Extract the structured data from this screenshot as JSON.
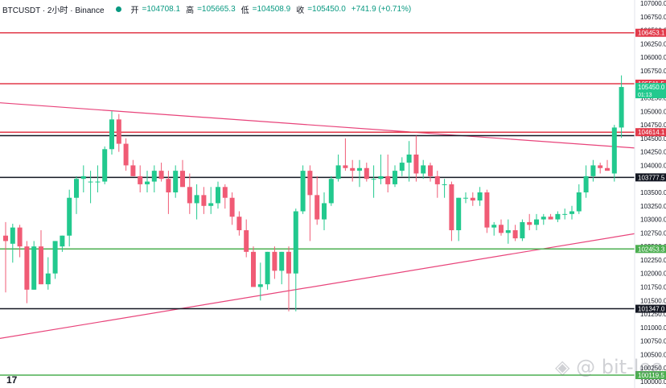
{
  "header": {
    "symbol": "BTCUSDT · 2小时 · Binance",
    "open_label": "开",
    "open_value": "=104708.1",
    "high_label": "高",
    "high_value": "=105665.3",
    "low_label": "低",
    "low_value": "=104508.9",
    "close_label": "收",
    "close_value": "=105450.0",
    "change": "+741.9 (+0.71%)"
  },
  "watermark": "◈ @ bit-lee",
  "chart_data": {
    "type": "candlestick",
    "y_axis": {
      "min": 100000,
      "max": 107000,
      "ticks": [
        107000,
        106750,
        106500,
        106250,
        106000,
        105750,
        105500,
        105250,
        105000,
        104750,
        104500,
        104250,
        104000,
        103750,
        103500,
        103250,
        103000,
        102750,
        102500,
        102250,
        102000,
        101750,
        101500,
        101250,
        101000,
        100750,
        100500,
        100250,
        100000
      ]
    },
    "colors": {
      "up": "#22c98e",
      "down": "#f05b75",
      "red_line": "#e23a4a",
      "green_line": "#4caf50",
      "black_line": "#131722",
      "trend": "#e8437a"
    },
    "candles": [
      {
        "o": 102700,
        "h": 102950,
        "l": 101650,
        "c": 102600
      },
      {
        "o": 102550,
        "h": 102920,
        "l": 102200,
        "c": 102850
      },
      {
        "o": 102850,
        "h": 102900,
        "l": 102300,
        "c": 102500
      },
      {
        "o": 102500,
        "h": 102600,
        "l": 101450,
        "c": 101700
      },
      {
        "o": 101700,
        "h": 102600,
        "l": 101700,
        "c": 102500
      },
      {
        "o": 102500,
        "h": 102800,
        "l": 101800,
        "c": 101800
      },
      {
        "o": 101800,
        "h": 102300,
        "l": 101700,
        "c": 102000
      },
      {
        "o": 102000,
        "h": 102600,
        "l": 101900,
        "c": 102600
      },
      {
        "o": 102500,
        "h": 102700,
        "l": 102400,
        "c": 102700
      },
      {
        "o": 102700,
        "h": 103550,
        "l": 102500,
        "c": 103400
      },
      {
        "o": 103400,
        "h": 103800,
        "l": 103100,
        "c": 103750
      },
      {
        "o": 103750,
        "h": 104000,
        "l": 103500,
        "c": 103800
      },
      {
        "o": 103700,
        "h": 103900,
        "l": 103300,
        "c": 103700
      },
      {
        "o": 103700,
        "h": 104000,
        "l": 103500,
        "c": 103700
      },
      {
        "o": 103700,
        "h": 104350,
        "l": 103650,
        "c": 104300
      },
      {
        "o": 104300,
        "h": 105000,
        "l": 104200,
        "c": 104850
      },
      {
        "o": 104850,
        "h": 104950,
        "l": 104250,
        "c": 104400
      },
      {
        "o": 104400,
        "h": 104500,
        "l": 103900,
        "c": 104000
      },
      {
        "o": 104000,
        "h": 104100,
        "l": 103800,
        "c": 103800
      },
      {
        "o": 103800,
        "h": 104000,
        "l": 103500,
        "c": 103650
      },
      {
        "o": 103650,
        "h": 103900,
        "l": 103500,
        "c": 103700
      },
      {
        "o": 103700,
        "h": 104000,
        "l": 103500,
        "c": 103900
      },
      {
        "o": 103900,
        "h": 104050,
        "l": 103700,
        "c": 103750
      },
      {
        "o": 103750,
        "h": 103900,
        "l": 103100,
        "c": 103500
      },
      {
        "o": 103500,
        "h": 104000,
        "l": 103400,
        "c": 103900
      },
      {
        "o": 103900,
        "h": 104100,
        "l": 103600,
        "c": 103600
      },
      {
        "o": 103600,
        "h": 103850,
        "l": 103100,
        "c": 103300
      },
      {
        "o": 103300,
        "h": 103650,
        "l": 103000,
        "c": 103450
      },
      {
        "o": 103450,
        "h": 103600,
        "l": 103100,
        "c": 103250
      },
      {
        "o": 103250,
        "h": 103600,
        "l": 103100,
        "c": 103300
      },
      {
        "o": 103300,
        "h": 103700,
        "l": 103200,
        "c": 103600
      },
      {
        "o": 103600,
        "h": 103650,
        "l": 103200,
        "c": 103400
      },
      {
        "o": 103400,
        "h": 103500,
        "l": 102900,
        "c": 103050
      },
      {
        "o": 103050,
        "h": 103150,
        "l": 102700,
        "c": 102800
      },
      {
        "o": 102800,
        "h": 103000,
        "l": 102300,
        "c": 102400
      },
      {
        "o": 102400,
        "h": 102500,
        "l": 101800,
        "c": 101750
      },
      {
        "o": 101750,
        "h": 102200,
        "l": 101500,
        "c": 101800
      },
      {
        "o": 101800,
        "h": 102400,
        "l": 101700,
        "c": 102400
      },
      {
        "o": 102400,
        "h": 102500,
        "l": 101900,
        "c": 102050
      },
      {
        "o": 102050,
        "h": 102400,
        "l": 101800,
        "c": 102400
      },
      {
        "o": 102400,
        "h": 102500,
        "l": 101300,
        "c": 102000
      },
      {
        "o": 102000,
        "h": 103200,
        "l": 101300,
        "c": 103150
      },
      {
        "o": 103150,
        "h": 104000,
        "l": 103100,
        "c": 103900
      },
      {
        "o": 103900,
        "h": 104000,
        "l": 102600,
        "c": 103450
      },
      {
        "o": 103450,
        "h": 103800,
        "l": 102900,
        "c": 103000
      },
      {
        "o": 103000,
        "h": 103500,
        "l": 102800,
        "c": 103300
      },
      {
        "o": 103300,
        "h": 103800,
        "l": 103250,
        "c": 103750
      },
      {
        "o": 103750,
        "h": 104200,
        "l": 103700,
        "c": 104000
      },
      {
        "o": 104000,
        "h": 104500,
        "l": 103900,
        "c": 103950
      },
      {
        "o": 103950,
        "h": 104100,
        "l": 103700,
        "c": 103900
      },
      {
        "o": 103900,
        "h": 104100,
        "l": 103600,
        "c": 103950
      },
      {
        "o": 103950,
        "h": 104050,
        "l": 103700,
        "c": 103750
      },
      {
        "o": 103750,
        "h": 104000,
        "l": 103400,
        "c": 103750
      },
      {
        "o": 103750,
        "h": 104200,
        "l": 103650,
        "c": 103800
      },
      {
        "o": 103800,
        "h": 104200,
        "l": 103500,
        "c": 103650
      },
      {
        "o": 103650,
        "h": 104000,
        "l": 103600,
        "c": 103900
      },
      {
        "o": 103900,
        "h": 104150,
        "l": 103800,
        "c": 104050
      },
      {
        "o": 104050,
        "h": 104450,
        "l": 103700,
        "c": 104200
      },
      {
        "o": 104200,
        "h": 104550,
        "l": 103700,
        "c": 103850
      },
      {
        "o": 103850,
        "h": 104100,
        "l": 103750,
        "c": 104000
      },
      {
        "o": 104000,
        "h": 104050,
        "l": 103700,
        "c": 103800
      },
      {
        "o": 103800,
        "h": 103900,
        "l": 103400,
        "c": 103650
      },
      {
        "o": 103650,
        "h": 103750,
        "l": 103400,
        "c": 103650
      },
      {
        "o": 103650,
        "h": 103700,
        "l": 102600,
        "c": 102800
      },
      {
        "o": 102800,
        "h": 103400,
        "l": 102600,
        "c": 103400
      },
      {
        "o": 103400,
        "h": 103500,
        "l": 103300,
        "c": 103400
      },
      {
        "o": 103400,
        "h": 103500,
        "l": 103250,
        "c": 103350
      },
      {
        "o": 103350,
        "h": 103600,
        "l": 103250,
        "c": 103500
      },
      {
        "o": 103500,
        "h": 103550,
        "l": 102750,
        "c": 102850
      },
      {
        "o": 102850,
        "h": 102950,
        "l": 102700,
        "c": 102900
      },
      {
        "o": 102900,
        "h": 103000,
        "l": 102700,
        "c": 102750
      },
      {
        "o": 102750,
        "h": 103000,
        "l": 102550,
        "c": 102800
      },
      {
        "o": 102800,
        "h": 102900,
        "l": 102600,
        "c": 102650
      },
      {
        "o": 102650,
        "h": 103000,
        "l": 102600,
        "c": 102950
      },
      {
        "o": 102950,
        "h": 103100,
        "l": 102800,
        "c": 102900
      },
      {
        "o": 102900,
        "h": 103100,
        "l": 102800,
        "c": 103000
      },
      {
        "o": 103000,
        "h": 103100,
        "l": 102900,
        "c": 103050
      },
      {
        "o": 103050,
        "h": 103100,
        "l": 103000,
        "c": 103000
      },
      {
        "o": 103000,
        "h": 103150,
        "l": 102950,
        "c": 103100
      },
      {
        "o": 103100,
        "h": 103200,
        "l": 103000,
        "c": 103100
      },
      {
        "o": 103100,
        "h": 103250,
        "l": 103000,
        "c": 103150
      },
      {
        "o": 103150,
        "h": 103650,
        "l": 103100,
        "c": 103500
      },
      {
        "o": 103500,
        "h": 104000,
        "l": 103400,
        "c": 103800
      },
      {
        "o": 103800,
        "h": 104100,
        "l": 103700,
        "c": 104000
      },
      {
        "o": 104000,
        "h": 104050,
        "l": 103850,
        "c": 103950
      },
      {
        "o": 103950,
        "h": 104100,
        "l": 103900,
        "c": 103900
      },
      {
        "o": 103850,
        "h": 104750,
        "l": 103700,
        "c": 104700
      },
      {
        "o": 104700,
        "h": 105665,
        "l": 104509,
        "c": 105450
      }
    ],
    "levels": [
      {
        "price": 106453.1,
        "label": "106453.1",
        "color": "red"
      },
      {
        "price": 105511.5,
        "label": "105511.5",
        "color": "red"
      },
      {
        "price": 104614.1,
        "label": "104614.1",
        "color": "red"
      },
      {
        "price": 104550,
        "label": "",
        "color": "black"
      },
      {
        "price": 103777.5,
        "label": "103777.5",
        "color": "black"
      },
      {
        "price": 102453.3,
        "label": "102453.3",
        "color": "green"
      },
      {
        "price": 101347.0,
        "label": "101347.0",
        "color": "black"
      },
      {
        "price": 100119.5,
        "label": "100119.5",
        "color": "green"
      }
    ],
    "trendlines": [
      {
        "from": {
          "bar": -5,
          "price": 105200
        },
        "to": {
          "bar": 113,
          "price": 104100
        }
      },
      {
        "from": {
          "bar": -5,
          "price": 100700
        },
        "to": {
          "bar": 113,
          "price": 103250
        }
      }
    ],
    "last_price_label": "105450.0",
    "countdown_label": "01:13"
  }
}
